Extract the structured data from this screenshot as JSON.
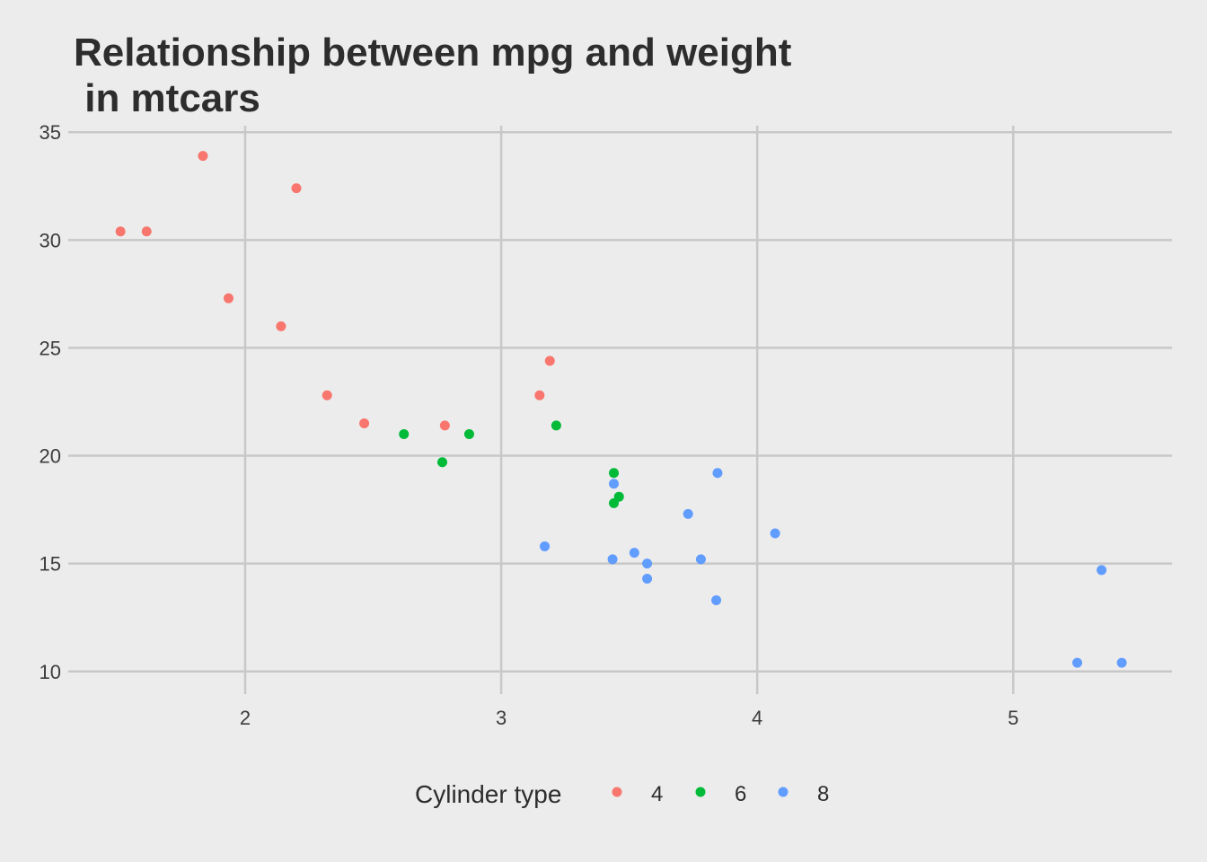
{
  "chart_data": {
    "type": "scatter",
    "title_lines": [
      "Relationship between mpg and weight",
      " in mtcars"
    ],
    "xlabel": "",
    "ylabel": "",
    "xlim": [
      1.33,
      5.62
    ],
    "ylim": [
      9.2,
      35.3
    ],
    "x_ticks": [
      2,
      3,
      4,
      5
    ],
    "x_tick_labels": [
      "2",
      "3",
      "4",
      "5"
    ],
    "y_ticks": [
      10,
      15,
      20,
      25,
      30,
      35
    ],
    "y_tick_labels": [
      "10",
      "15",
      "20",
      "25",
      "30",
      "35"
    ],
    "grid": true,
    "legend_position": "bottom",
    "legend_title": "Cylinder type",
    "series": [
      {
        "name": "4",
        "color": "#F8766D",
        "points": [
          {
            "x": 1.513,
            "y": 30.4
          },
          {
            "x": 1.615,
            "y": 30.4
          },
          {
            "x": 1.835,
            "y": 33.9
          },
          {
            "x": 1.935,
            "y": 27.3
          },
          {
            "x": 2.14,
            "y": 26.0
          },
          {
            "x": 2.2,
            "y": 32.4
          },
          {
            "x": 2.32,
            "y": 22.8
          },
          {
            "x": 2.465,
            "y": 21.5
          },
          {
            "x": 2.78,
            "y": 21.4
          },
          {
            "x": 3.15,
            "y": 22.8
          },
          {
            "x": 3.19,
            "y": 24.4
          }
        ]
      },
      {
        "name": "6",
        "color": "#00BA38",
        "points": [
          {
            "x": 2.62,
            "y": 21.0
          },
          {
            "x": 2.77,
            "y": 19.7
          },
          {
            "x": 2.875,
            "y": 21.0
          },
          {
            "x": 3.215,
            "y": 21.4
          },
          {
            "x": 3.44,
            "y": 19.2
          },
          {
            "x": 3.44,
            "y": 17.8
          },
          {
            "x": 3.46,
            "y": 18.1
          }
        ]
      },
      {
        "name": "8",
        "color": "#619CFF",
        "points": [
          {
            "x": 3.17,
            "y": 15.8
          },
          {
            "x": 3.435,
            "y": 15.2
          },
          {
            "x": 3.44,
            "y": 18.7
          },
          {
            "x": 3.52,
            "y": 15.5
          },
          {
            "x": 3.57,
            "y": 15.0
          },
          {
            "x": 3.57,
            "y": 14.3
          },
          {
            "x": 3.73,
            "y": 17.3
          },
          {
            "x": 3.78,
            "y": 15.2
          },
          {
            "x": 3.84,
            "y": 13.3
          },
          {
            "x": 3.845,
            "y": 19.2
          },
          {
            "x": 4.07,
            "y": 16.4
          },
          {
            "x": 5.25,
            "y": 10.4
          },
          {
            "x": 5.345,
            "y": 14.7
          },
          {
            "x": 5.424,
            "y": 10.4
          }
        ]
      }
    ]
  }
}
